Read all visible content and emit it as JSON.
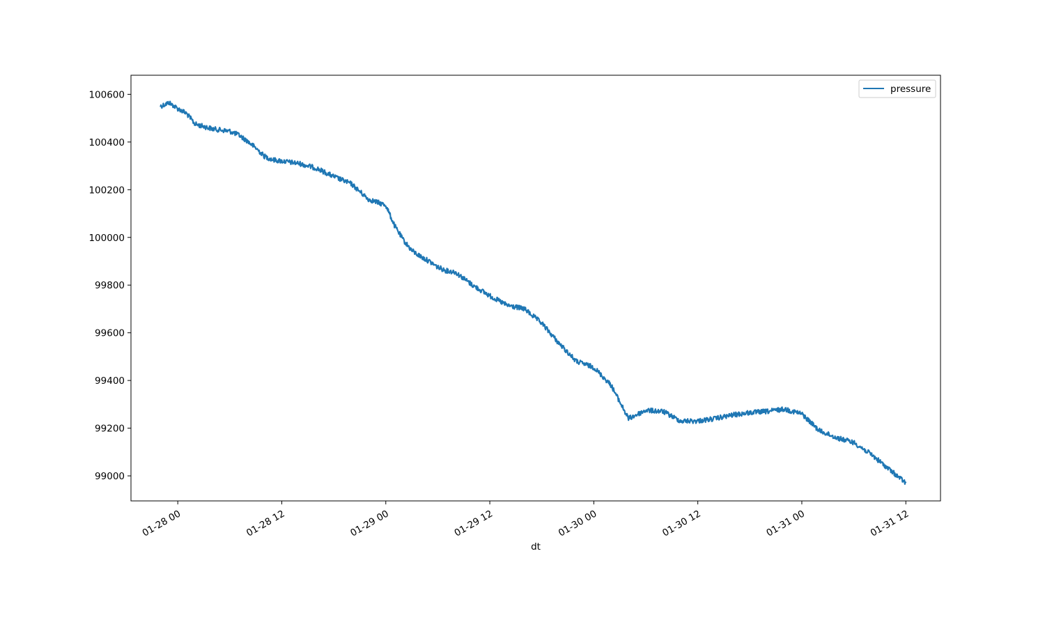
{
  "chart_data": {
    "type": "line",
    "title": "",
    "xlabel": "dt",
    "ylabel": "",
    "x_tick_labels": [
      "01-28 00",
      "01-28 12",
      "01-29 00",
      "01-29 12",
      "01-30 00",
      "01-30 12",
      "01-31 00",
      "01-31 12"
    ],
    "y_tick_labels": [
      "99000",
      "99200",
      "99400",
      "99600",
      "99800",
      "100000",
      "100200",
      "100400",
      "100600"
    ],
    "y_ticks": [
      99000,
      99200,
      99400,
      99600,
      99800,
      100000,
      100200,
      100400,
      100600
    ],
    "xlim": [
      "2024-01-27T18:36",
      "2024-01-31T16:00"
    ],
    "ylim": [
      98895,
      100680
    ],
    "grid": false,
    "legend_position": "upper right",
    "series": [
      {
        "name": "pressure",
        "color": "#1f77b4",
        "x": [
          "2024-01-27T22:00",
          "2024-01-27T23:00",
          "2024-01-28T00:00",
          "2024-01-28T01:00",
          "2024-01-28T02:00",
          "2024-01-28T03:00",
          "2024-01-28T04:00",
          "2024-01-28T05:00",
          "2024-01-28T06:00",
          "2024-01-28T07:00",
          "2024-01-28T08:00",
          "2024-01-28T09:00",
          "2024-01-28T10:00",
          "2024-01-28T11:00",
          "2024-01-28T12:00",
          "2024-01-28T14:00",
          "2024-01-28T16:00",
          "2024-01-28T18:00",
          "2024-01-28T20:00",
          "2024-01-28T22:00",
          "2024-01-29T00:00",
          "2024-01-29T01:00",
          "2024-01-29T02:00",
          "2024-01-29T03:00",
          "2024-01-29T04:00",
          "2024-01-29T05:00",
          "2024-01-29T06:00",
          "2024-01-29T07:00",
          "2024-01-29T08:00",
          "2024-01-29T10:00",
          "2024-01-29T12:00",
          "2024-01-29T14:00",
          "2024-01-29T16:00",
          "2024-01-29T18:00",
          "2024-01-29T20:00",
          "2024-01-29T22:00",
          "2024-01-30T00:00",
          "2024-01-30T02:00",
          "2024-01-30T04:00",
          "2024-01-30T06:00",
          "2024-01-30T08:00",
          "2024-01-30T10:00",
          "2024-01-30T12:00",
          "2024-01-30T14:00",
          "2024-01-30T16:00",
          "2024-01-30T18:00",
          "2024-01-30T20:00",
          "2024-01-30T22:00",
          "2024-01-31T00:00",
          "2024-01-31T02:00",
          "2024-01-31T04:00",
          "2024-01-31T06:00",
          "2024-01-31T08:00",
          "2024-01-31T10:00",
          "2024-01-31T11:00",
          "2024-01-31T12:00"
        ],
        "y": [
          100550,
          100565,
          100540,
          100520,
          100475,
          100465,
          100455,
          100450,
          100445,
          100430,
          100405,
          100375,
          100340,
          100325,
          100320,
          100310,
          100290,
          100255,
          100225,
          100160,
          100135,
          100050,
          99990,
          99945,
          99920,
          99900,
          99875,
          99860,
          99855,
          99800,
          99755,
          99715,
          99700,
          99640,
          99555,
          99480,
          99455,
          99380,
          99240,
          99275,
          99270,
          99230,
          99230,
          99240,
          99255,
          99265,
          99270,
          99280,
          99260,
          99190,
          99160,
          99140,
          99090,
          99030,
          99000,
          98970
        ]
      }
    ]
  }
}
